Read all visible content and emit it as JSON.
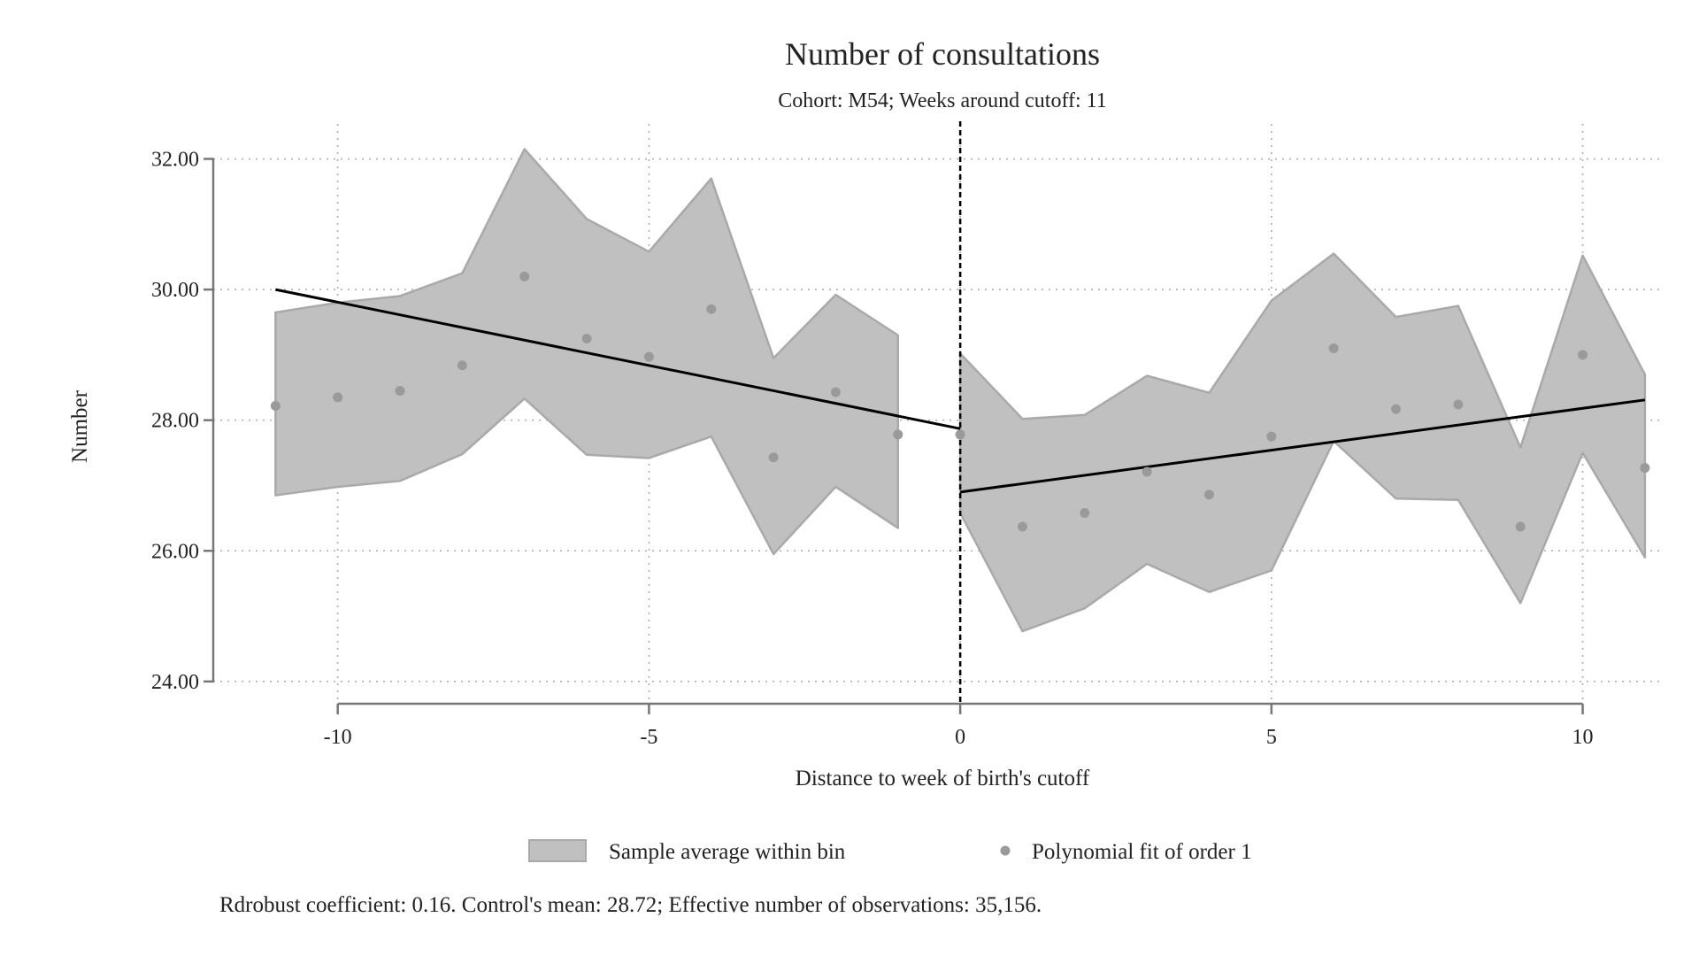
{
  "chart_data": {
    "type": "line",
    "title": "Number of consultations",
    "subtitle": "Cohort: M54; Weeks around cutoff: 11",
    "xlabel": "Distance to week of birth's cutoff",
    "ylabel": "Number",
    "xlim": [
      -12,
      11.3
    ],
    "ylim": [
      23.7,
      32.4
    ],
    "x_ticks": [
      -10,
      -5,
      0,
      5,
      10
    ],
    "x_tick_labels": [
      "-10",
      "-5",
      "0",
      "5",
      "10"
    ],
    "y_ticks": [
      24,
      26,
      28,
      30,
      32
    ],
    "y_tick_labels": [
      "24.00",
      "26.00",
      "28.00",
      "30.00",
      "32.00"
    ],
    "grid": true,
    "cutoff": 0,
    "colors": {
      "band_fill": "#c0c0c0",
      "band_edge": "#a9a9a9",
      "points": "#9a9a9a",
      "fit_line": "#000000",
      "axis": "#777777",
      "grid": "#b0b0b0"
    },
    "bin_averages": [
      {
        "x": -11,
        "y": 28.22
      },
      {
        "x": -10,
        "y": 28.35
      },
      {
        "x": -9,
        "y": 28.45
      },
      {
        "x": -8,
        "y": 28.84
      },
      {
        "x": -7,
        "y": 30.2
      },
      {
        "x": -6,
        "y": 29.25
      },
      {
        "x": -5,
        "y": 28.97
      },
      {
        "x": -4,
        "y": 29.7
      },
      {
        "x": -3,
        "y": 27.43
      },
      {
        "x": -2,
        "y": 28.43
      },
      {
        "x": -1,
        "y": 27.78
      },
      {
        "x": 0,
        "y": 27.78
      },
      {
        "x": 1,
        "y": 26.37
      },
      {
        "x": 2,
        "y": 26.58
      },
      {
        "x": 3,
        "y": 27.21
      },
      {
        "x": 4,
        "y": 26.86
      },
      {
        "x": 5,
        "y": 27.75
      },
      {
        "x": 6,
        "y": 29.1
      },
      {
        "x": 7,
        "y": 28.17
      },
      {
        "x": 8,
        "y": 28.24
      },
      {
        "x": 9,
        "y": 26.37
      },
      {
        "x": 10,
        "y": 29.0
      },
      {
        "x": 11,
        "y": 27.27
      }
    ],
    "confidence_band": {
      "left": {
        "x": [
          -11,
          -10,
          -9,
          -8,
          -7,
          -6,
          -5,
          -4,
          -3,
          -2,
          -1
        ],
        "upper": [
          29.65,
          29.8,
          29.9,
          30.25,
          32.15,
          31.08,
          30.58,
          31.7,
          28.95,
          29.92,
          29.3
        ],
        "lower": [
          26.85,
          26.98,
          27.07,
          27.48,
          28.33,
          27.47,
          27.42,
          27.75,
          25.95,
          26.98,
          26.35
        ]
      },
      "right": {
        "x": [
          0,
          1,
          2,
          3,
          4,
          5,
          6,
          7,
          8,
          9,
          10,
          11
        ],
        "upper": [
          29.02,
          28.02,
          28.08,
          28.68,
          28.42,
          29.83,
          30.55,
          29.58,
          29.75,
          27.58,
          30.52,
          28.7
        ],
        "lower": [
          26.58,
          24.77,
          25.12,
          25.8,
          25.37,
          25.7,
          27.68,
          26.8,
          26.78,
          25.2,
          27.5,
          25.9
        ]
      }
    },
    "fit_lines": [
      {
        "x": [
          -11,
          0
        ],
        "y": [
          30.0,
          27.87
        ]
      },
      {
        "x": [
          0,
          11
        ],
        "y": [
          26.9,
          28.31
        ]
      }
    ],
    "legend": {
      "placement": "bottom",
      "entries": [
        "Sample average within bin",
        "Polynomial fit of order 1"
      ]
    },
    "note": "Rdrobust coefficient: 0.16. Control's mean: 28.72; Effective number of observations: 35,156."
  }
}
